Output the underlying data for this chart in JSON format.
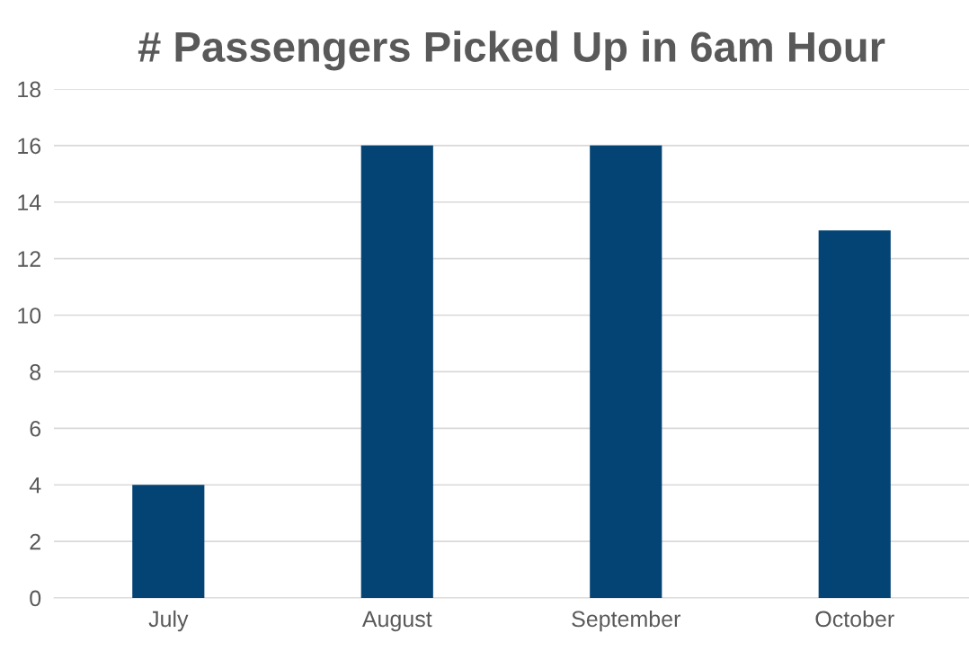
{
  "chart_data": {
    "type": "bar",
    "title": "# Passengers Picked Up in 6am Hour",
    "categories": [
      "July",
      "August",
      "September",
      "October"
    ],
    "values": [
      4,
      16,
      16,
      13
    ],
    "color": "#044474",
    "ylim": [
      0,
      18
    ],
    "yticks": [
      0,
      2,
      4,
      6,
      8,
      10,
      12,
      14,
      16,
      18
    ],
    "grid": "y",
    "legend": false
  }
}
